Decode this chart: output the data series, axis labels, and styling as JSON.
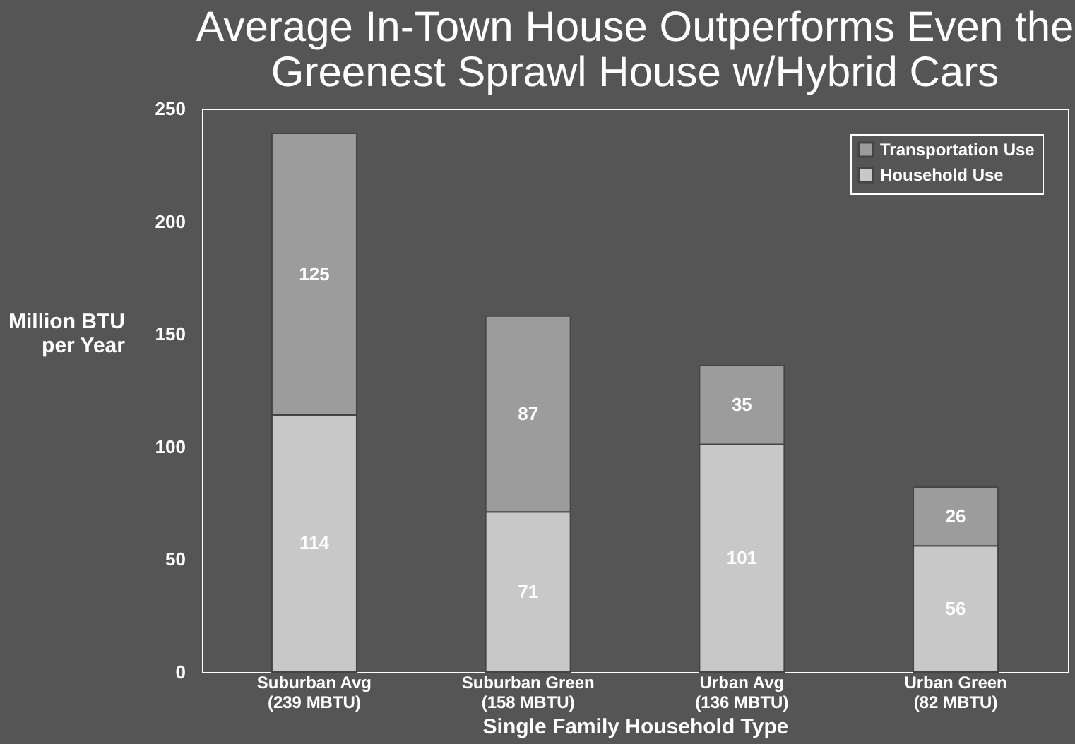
{
  "chart_data": {
    "type": "bar",
    "title": "Average In-Town House Outperforms Even the\nGreenest Sprawl House w/Hybrid Cars",
    "xlabel": "Single Family Household Type",
    "ylabel": "Million BTU\nper Year",
    "categories": [
      "Suburban Avg\n(239 MBTU)",
      "Suburban Green\n(158 MBTU)",
      "Urban Avg\n(136 MBTU)",
      "Urban Green\n(82 MBTU)"
    ],
    "series": [
      {
        "name": "Household Use",
        "color": "#c8c8c8",
        "values": [
          114,
          71,
          101,
          56
        ]
      },
      {
        "name": "Transportation Use",
        "color": "#9c9c9c",
        "values": [
          125,
          87,
          35,
          26
        ]
      }
    ],
    "stacked": true,
    "data_labels": true,
    "ylim": [
      0,
      250
    ],
    "yticks": [
      0,
      50,
      100,
      150,
      200,
      250
    ],
    "grid": false,
    "legend": "top right"
  }
}
